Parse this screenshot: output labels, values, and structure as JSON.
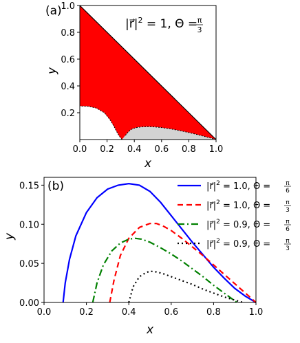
{
  "chart_data": [
    {
      "panel_tag": "(a)",
      "type": "area",
      "title": "",
      "annotation": "|r⃗|² = 1, Θ = π/3",
      "annotation_parts": {
        "lhs": "|r⃗|",
        "lhs_sup": "2",
        "mid": " = 1,  Θ = ",
        "frac_num": "π",
        "frac_den": "3"
      },
      "xlabel": "x",
      "ylabel": "y",
      "xlim": [
        0,
        1
      ],
      "ylim": [
        0,
        1
      ],
      "xticks": [
        "0.0",
        "0.2",
        "0.4",
        "0.6",
        "0.8",
        "1.0"
      ],
      "yticks": [
        "0.2",
        "0.4",
        "0.6",
        "0.8",
        "1.0"
      ],
      "xtick_values": [
        0,
        0.2,
        0.4,
        0.6,
        0.8,
        1.0
      ],
      "ytick_values": [
        0.2,
        0.4,
        0.6,
        0.8,
        1.0
      ],
      "colors": {
        "allowed": "#ff0000",
        "forbidden": "#d3d3d3",
        "boundary": "#000000"
      },
      "regions": [
        {
          "kind": "allowed",
          "boundary": [
            [
              0,
              1
            ],
            [
              1,
              0
            ],
            [
              0.95,
              0.014
            ],
            [
              0.9,
              0.027
            ],
            [
              0.85,
              0.04
            ],
            [
              0.8,
              0.052
            ],
            [
              0.75,
              0.063
            ],
            [
              0.7,
              0.073
            ],
            [
              0.65,
              0.082
            ],
            [
              0.6,
              0.089
            ],
            [
              0.55,
              0.094
            ],
            [
              0.5,
              0.096
            ],
            [
              0.45,
              0.094
            ],
            [
              0.42,
              0.09
            ],
            [
              0.39,
              0.082
            ],
            [
              0.37,
              0.07
            ],
            [
              0.35,
              0.05
            ],
            [
              0.33,
              0.025
            ],
            [
              0.31,
              0
            ],
            [
              0.29,
              0.025
            ],
            [
              0.27,
              0.06
            ],
            [
              0.25,
              0.1
            ],
            [
              0.22,
              0.15
            ],
            [
              0.18,
              0.2
            ],
            [
              0.12,
              0.235
            ],
            [
              0.06,
              0.248
            ],
            [
              0,
              0.25
            ]
          ]
        },
        {
          "kind": "forbidden",
          "boundary": [
            [
              0.31,
              0
            ],
            [
              1,
              0
            ],
            [
              0.95,
              0.014
            ],
            [
              0.9,
              0.027
            ],
            [
              0.85,
              0.04
            ],
            [
              0.8,
              0.052
            ],
            [
              0.75,
              0.063
            ],
            [
              0.7,
              0.073
            ],
            [
              0.65,
              0.082
            ],
            [
              0.6,
              0.089
            ],
            [
              0.55,
              0.094
            ],
            [
              0.5,
              0.096
            ],
            [
              0.45,
              0.094
            ],
            [
              0.42,
              0.09
            ],
            [
              0.39,
              0.082
            ],
            [
              0.37,
              0.07
            ],
            [
              0.35,
              0.05
            ],
            [
              0.33,
              0.025
            ]
          ]
        }
      ]
    },
    {
      "panel_tag": "(b)",
      "type": "line",
      "title": "",
      "xlabel": "x",
      "ylabel": "y",
      "xlim": [
        0,
        1
      ],
      "ylim": [
        0,
        0.16
      ],
      "xticks": [
        "0.0",
        "0.2",
        "0.4",
        "0.6",
        "0.8",
        "1.0"
      ],
      "yticks": [
        "0.00",
        "0.05",
        "0.10",
        "0.15"
      ],
      "xtick_values": [
        0,
        0.2,
        0.4,
        0.6,
        0.8,
        1.0
      ],
      "ytick_values": [
        0,
        0.05,
        0.1,
        0.15
      ],
      "legend_position": "top-right",
      "series": [
        {
          "label": {
            "lhs": "|r⃗|",
            "sup": "2",
            "mid": " = 1.0, Θ = ",
            "num": "π",
            "den": "6"
          },
          "color": "#0000ff",
          "dash": "",
          "points": [
            [
              0.09,
              0
            ],
            [
              0.1,
              0.025
            ],
            [
              0.12,
              0.055
            ],
            [
              0.15,
              0.085
            ],
            [
              0.2,
              0.115
            ],
            [
              0.25,
              0.134
            ],
            [
              0.3,
              0.145
            ],
            [
              0.35,
              0.15
            ],
            [
              0.4,
              0.152
            ],
            [
              0.45,
              0.15
            ],
            [
              0.5,
              0.142
            ],
            [
              0.55,
              0.128
            ],
            [
              0.6,
              0.111
            ],
            [
              0.65,
              0.094
            ],
            [
              0.7,
              0.077
            ],
            [
              0.75,
              0.061
            ],
            [
              0.8,
              0.045
            ],
            [
              0.85,
              0.031
            ],
            [
              0.9,
              0.018
            ],
            [
              0.95,
              0.008
            ],
            [
              1.0,
              0
            ]
          ]
        },
        {
          "label": {
            "lhs": "|r⃗|",
            "sup": "2",
            "mid": " = 1.0, Θ = ",
            "num": "π",
            "den": "3"
          },
          "color": "#ff0000",
          "dash": "8,5",
          "points": [
            [
              0.31,
              0
            ],
            [
              0.33,
              0.028
            ],
            [
              0.36,
              0.06
            ],
            [
              0.4,
              0.082
            ],
            [
              0.45,
              0.096
            ],
            [
              0.5,
              0.101
            ],
            [
              0.53,
              0.101
            ],
            [
              0.56,
              0.098
            ],
            [
              0.6,
              0.092
            ],
            [
              0.65,
              0.082
            ],
            [
              0.7,
              0.071
            ],
            [
              0.75,
              0.06
            ],
            [
              0.8,
              0.048
            ],
            [
              0.85,
              0.036
            ],
            [
              0.9,
              0.024
            ],
            [
              0.95,
              0.012
            ],
            [
              1.0,
              0
            ]
          ]
        },
        {
          "label": {
            "lhs": "|r⃗|",
            "sup": "2",
            "mid": " = 0.9, Θ = ",
            "num": "π",
            "den": "6"
          },
          "color": "#008000",
          "dash": "10,4,2,4",
          "points": [
            [
              0.23,
              0
            ],
            [
              0.25,
              0.025
            ],
            [
              0.28,
              0.048
            ],
            [
              0.32,
              0.066
            ],
            [
              0.36,
              0.076
            ],
            [
              0.4,
              0.081
            ],
            [
              0.43,
              0.082
            ],
            [
              0.46,
              0.081
            ],
            [
              0.5,
              0.077
            ],
            [
              0.55,
              0.07
            ],
            [
              0.6,
              0.062
            ],
            [
              0.65,
              0.053
            ],
            [
              0.7,
              0.043
            ],
            [
              0.75,
              0.033
            ],
            [
              0.8,
              0.022
            ],
            [
              0.85,
              0.012
            ],
            [
              0.9,
              0.002
            ],
            [
              0.91,
              0
            ]
          ]
        },
        {
          "label": {
            "lhs": "|r⃗|",
            "sup": "2",
            "mid": " = 0.9, Θ = ",
            "num": "π",
            "den": "3"
          },
          "color": "#000000",
          "dash": "2,4",
          "points": [
            [
              0.4,
              0
            ],
            [
              0.42,
              0.02
            ],
            [
              0.45,
              0.033
            ],
            [
              0.48,
              0.038
            ],
            [
              0.5,
              0.04
            ],
            [
              0.53,
              0.039
            ],
            [
              0.56,
              0.037
            ],
            [
              0.6,
              0.033
            ],
            [
              0.65,
              0.028
            ],
            [
              0.7,
              0.023
            ],
            [
              0.75,
              0.017
            ],
            [
              0.8,
              0.012
            ],
            [
              0.85,
              0.007
            ],
            [
              0.9,
              0.003
            ],
            [
              0.94,
              0
            ]
          ]
        }
      ]
    }
  ]
}
